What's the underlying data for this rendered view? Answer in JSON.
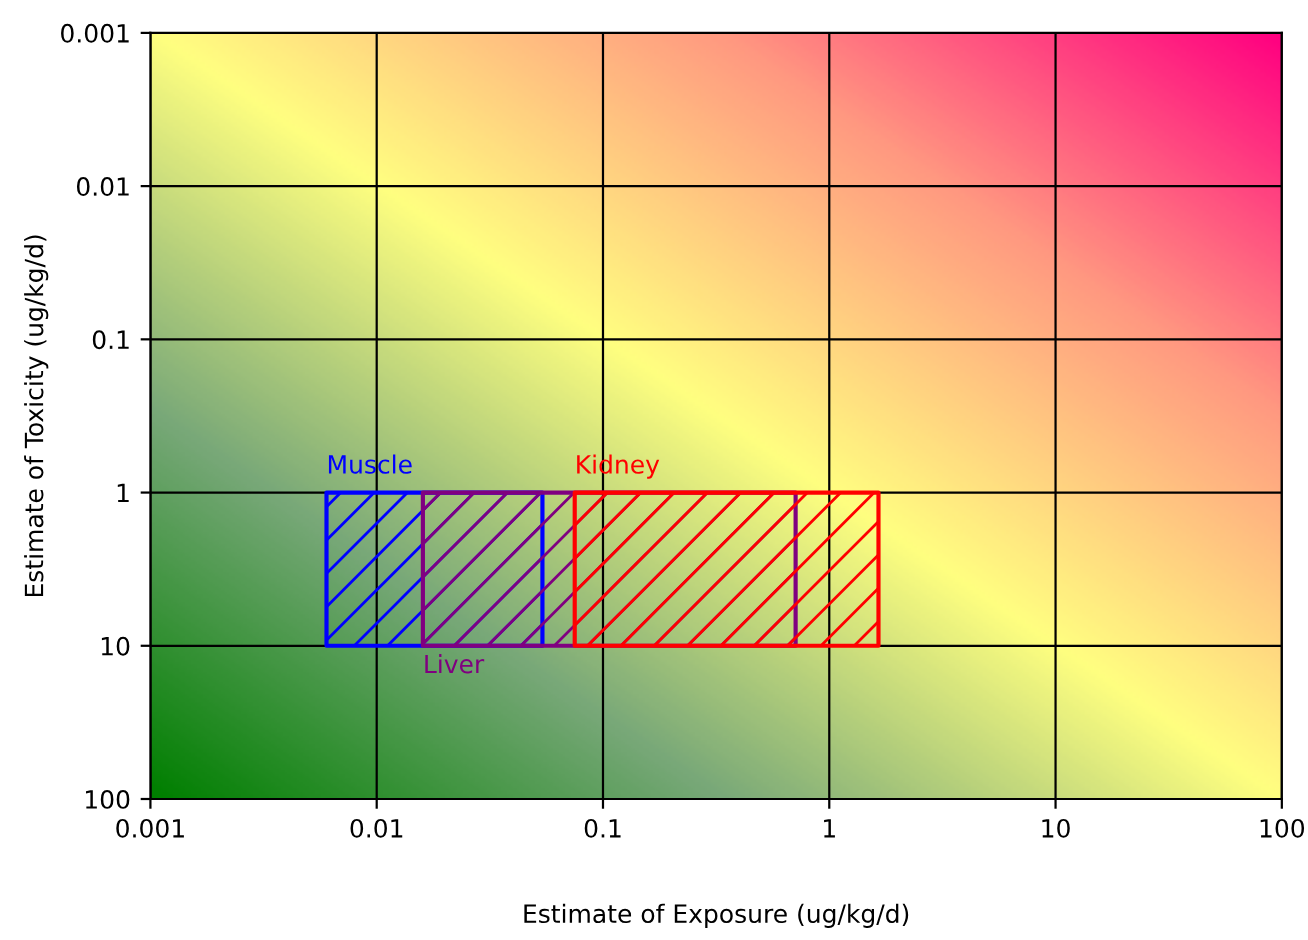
{
  "chart_data": {
    "type": "area",
    "xlabel": "Estimate of Exposure (ug/kg/d)",
    "ylabel": "Estimate of Toxicity (ug/kg/d)",
    "log": "xy",
    "xlim": [
      0.001,
      100
    ],
    "ylim": [
      100,
      0.001
    ],
    "xticks": [
      0.001,
      0.01,
      0.1,
      1,
      10,
      100
    ],
    "yticks": [
      0.001,
      0.01,
      0.1,
      1,
      10,
      100
    ],
    "grid": true,
    "series": [
      {
        "color": "#0000ff",
        "x": [
          0.006,
          0.054,
          0.054,
          0.006,
          0.006
        ],
        "values": [
          1,
          1,
          10,
          10,
          1
        ]
      },
      {
        "color": "#800080",
        "x": [
          0.016,
          0.71,
          0.71,
          0.016,
          0.016
        ],
        "values": [
          1,
          1,
          10,
          10,
          1
        ]
      },
      {
        "color": "#ff0000",
        "x": [
          0.075,
          1.65,
          1.65,
          0.075,
          0.075
        ],
        "values": [
          1,
          1,
          10,
          10,
          1
        ]
      }
    ],
    "annotations": [
      {
        "text": "Muscle",
        "x": 0.006,
        "y": 1
      },
      {
        "text": "Liver",
        "x": 0.016,
        "y": 10
      },
      {
        "text": "Kidney",
        "x": 0.075,
        "y": 1
      }
    ]
  }
}
